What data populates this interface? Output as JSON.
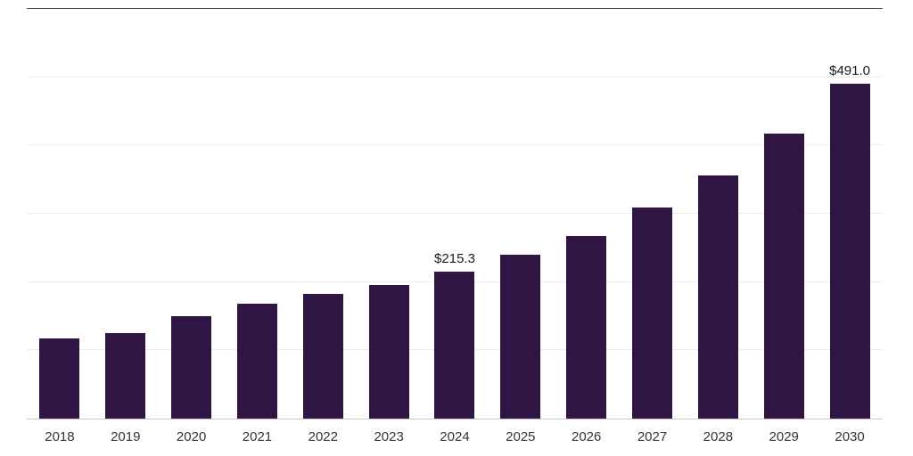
{
  "chart_data": {
    "type": "bar",
    "title": "",
    "xlabel": "",
    "ylabel": "",
    "categories": [
      "2018",
      "2019",
      "2020",
      "2021",
      "2022",
      "2023",
      "2024",
      "2025",
      "2026",
      "2027",
      "2028",
      "2029",
      "2030"
    ],
    "values": [
      118,
      125,
      150,
      168,
      182,
      196,
      215.3,
      240,
      268,
      309,
      356,
      417,
      491
    ],
    "data_labels": [
      {
        "index": 6,
        "text": "$215.3"
      },
      {
        "index": 12,
        "text": "$491.0"
      }
    ],
    "ylim": [
      0,
      600
    ],
    "gridline_step": 100,
    "grid": true,
    "legend_position": "none",
    "bar_color": "#2e1543",
    "gridline_color": "#ededed",
    "top_line_color": "#4a4a4a",
    "axis_line_color": "#c9c9c9",
    "label_color": "#1a1a1a",
    "tick_color": "#333333"
  }
}
